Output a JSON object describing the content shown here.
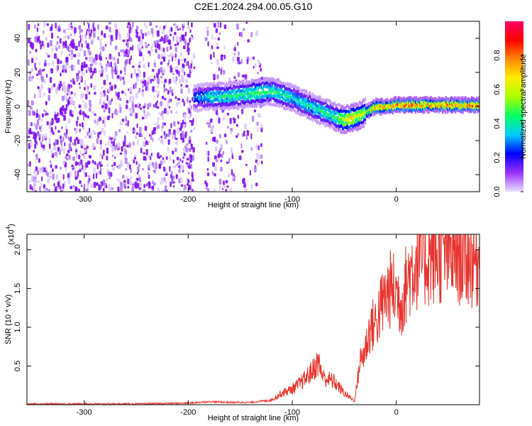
{
  "title": "C2E1.2024.294.00.05.G10",
  "colors": {
    "snr_line": "#e8332e",
    "spec_scatter": "#7f10f0",
    "axis": "#000000"
  },
  "chart_data": [
    {
      "id": "spectrogram",
      "type": "heatmap",
      "xlabel": "Height of straight line (km)",
      "ylabel": "Frequency (Hz)",
      "xlim": [
        -355,
        80
      ],
      "ylim": [
        -50,
        50
      ],
      "xticks": [
        -300,
        -200,
        -100,
        0
      ],
      "yticks": [
        -40,
        -20,
        0,
        20,
        40
      ],
      "colorbar": {
        "label": "Normalized spectral amplitude",
        "range": [
          0,
          1
        ],
        "ticks": [
          "0.0",
          "0.2",
          "0.4",
          "0.6",
          "0.8"
        ],
        "tick_values": [
          0.0,
          0.2,
          0.4,
          0.6,
          0.8
        ],
        "colormap": [
          "#e8e0ff",
          "#9b30ff",
          "#0000ff",
          "#00ccff",
          "#00ff66",
          "#aaff00",
          "#ffee00",
          "#ff8800",
          "#ff0000",
          "#ff0066"
        ]
      },
      "signal_track": {
        "x": [
          -195,
          -180,
          -165,
          -150,
          -135,
          -120,
          -110,
          -100,
          -90,
          -80,
          -70,
          -60,
          -55,
          -50,
          -45,
          -40,
          -35,
          -30,
          -20,
          -10,
          0,
          10,
          20,
          40,
          60,
          80
        ],
        "y": [
          5,
          6,
          6,
          7,
          8,
          9,
          7,
          5,
          2,
          -1,
          -3,
          -6,
          -7,
          -8,
          -7,
          -6,
          -5,
          -3,
          0,
          0,
          1,
          1,
          1,
          1,
          1,
          1
        ],
        "peak_amplitude": [
          0.3,
          0.45,
          0.5,
          0.5,
          0.55,
          0.5,
          0.5,
          0.45,
          0.45,
          0.45,
          0.5,
          0.5,
          0.6,
          0.75,
          0.85,
          0.7,
          0.7,
          0.6,
          0.85,
          0.85,
          0.95,
          0.95,
          0.9,
          0.85,
          0.9,
          0.95
        ]
      },
      "noise_regions": [
        {
          "x": [
            -355,
            -195
          ],
          "density": 1.0
        },
        {
          "x": [
            -185,
            -130
          ],
          "density": 0.45
        }
      ]
    },
    {
      "id": "snr",
      "type": "line",
      "xlabel": "Height of straight line (km)",
      "ylabel": "SNR (10 * v/v)",
      "y_scale_note": "(x10",
      "y_scale_exp": "4",
      "xlim": [
        -355,
        80
      ],
      "ylim": [
        0,
        2.2
      ],
      "xticks": [
        -300,
        -200,
        -100,
        0
      ],
      "yticks": [
        0.5,
        1.0,
        1.5,
        2.0
      ],
      "ytick_labels": [
        "0.5",
        "1.0",
        "1.5",
        "2.0"
      ],
      "series": [
        {
          "x": [
            -355,
            -300,
            -250,
            -200,
            -180,
            -160,
            -140,
            -120,
            -110,
            -100,
            -90,
            -80,
            -75,
            -70,
            -60,
            -50,
            -40,
            -35,
            -30,
            -25,
            -20,
            -15,
            -10,
            -5,
            0,
            5,
            10,
            15,
            20,
            30,
            40,
            50,
            60,
            70,
            80
          ],
          "y": [
            0.01,
            0.01,
            0.01,
            0.02,
            0.04,
            0.03,
            0.03,
            0.06,
            0.15,
            0.2,
            0.3,
            0.45,
            0.55,
            0.35,
            0.3,
            0.15,
            0.05,
            0.55,
            0.7,
            1.0,
            1.05,
            1.25,
            1.4,
            1.5,
            1.45,
            1.3,
            1.6,
            1.75,
            1.85,
            1.9,
            1.95,
            1.95,
            1.95,
            1.9,
            1.85
          ]
        }
      ]
    }
  ]
}
